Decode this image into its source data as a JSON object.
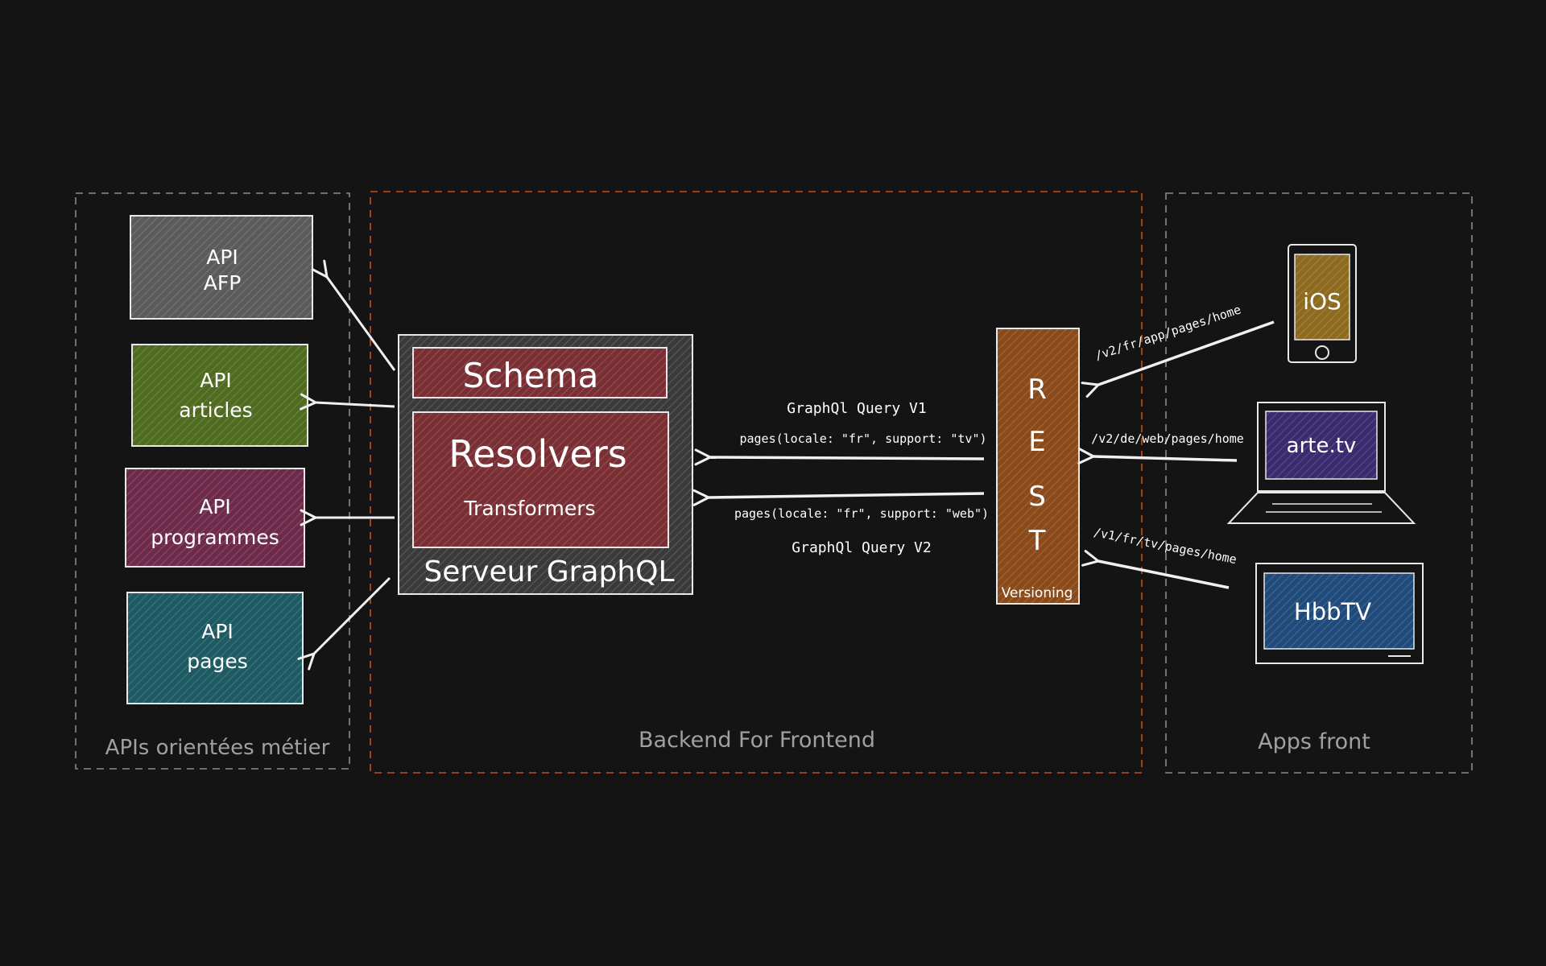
{
  "groups": {
    "business_apis": {
      "label": "APIs orientées métier"
    },
    "bff": {
      "label": "Backend For Frontend"
    },
    "apps": {
      "label": "Apps front"
    }
  },
  "apis": [
    {
      "line1": "API",
      "line2": "AFP",
      "color": "#5b5b5b"
    },
    {
      "line1": "API",
      "line2": "articles",
      "color": "#4f6b1f"
    },
    {
      "line1": "API",
      "line2": "programmes",
      "color": "#6e2a4a"
    },
    {
      "line1": "API",
      "line2": "pages",
      "color": "#1d5a63"
    }
  ],
  "graphql_server": {
    "schema": "Schema",
    "resolvers": "Resolvers",
    "transformers": "Transformers",
    "label": "Serveur GraphQL",
    "frame_color": "#3a3a3a",
    "block_color": "#7a2f34"
  },
  "queries": {
    "v1_title": "GraphQl Query V1",
    "v1_call": "pages(locale: \"fr\", support: \"tv\")",
    "v2_call": "pages(locale: \"fr\", support: \"web\")",
    "v2_title": "GraphQl Query V2"
  },
  "rest": {
    "letters": [
      "R",
      "E",
      "S",
      "T"
    ],
    "versioning": "Versioning",
    "color": "#8a4a1a"
  },
  "routes": {
    "ios": "/v2/fr/app/pages/home",
    "web": "/v2/de/web/pages/home",
    "tv": "/v1/fr/tv/pages/home"
  },
  "devices": {
    "ios": {
      "label": "iOS",
      "color": "#8c6a1f"
    },
    "web": {
      "label": "arte.tv",
      "color": "#3a2a6e"
    },
    "tv": {
      "label": "HbbTV",
      "color": "#1f4a7a"
    }
  },
  "colors": {
    "stroke": "#e8e8e8",
    "dash_gray": "#8a8a8a",
    "dash_orange": "#c4501e",
    "group_label": "#a0a0a0"
  }
}
